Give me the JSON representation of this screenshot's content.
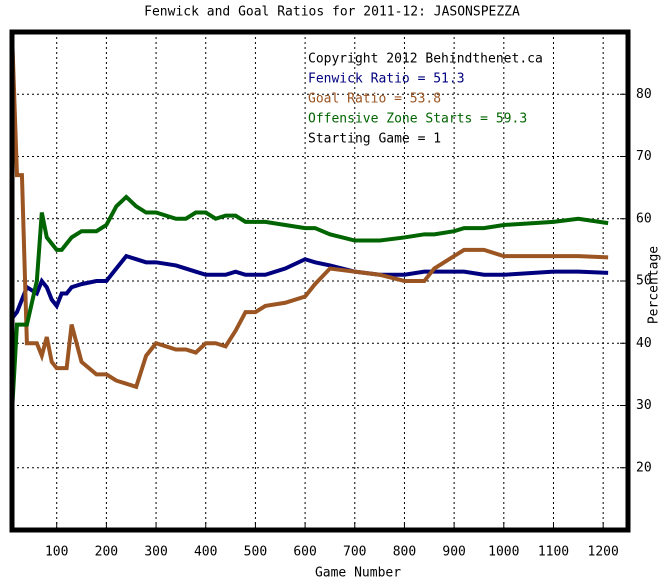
{
  "chart_data": {
    "type": "line",
    "title": "Fenwick and Goal Ratios for 2011-12: JASONSPEZZA",
    "x_label": "Game Number",
    "y_label": "Percentage",
    "annotations": [
      "Copyright 2012 Behindthenet.ca",
      "Starting Game = 1"
    ],
    "x": [
      10,
      20,
      30,
      40,
      60,
      70,
      80,
      90,
      100,
      110,
      120,
      130,
      150,
      180,
      200,
      220,
      240,
      260,
      280,
      300,
      340,
      360,
      380,
      400,
      420,
      440,
      460,
      480,
      500,
      520,
      560,
      600,
      620,
      650,
      700,
      750,
      800,
      840,
      860,
      900,
      920,
      960,
      1000,
      1100,
      1150,
      1210
    ],
    "series": [
      {
        "name": "Fenwick Ratio = 51.3",
        "color": "#00007f",
        "values": [
          44,
          45,
          47,
          49,
          48,
          50,
          49,
          47,
          46,
          48,
          48,
          49,
          49.5,
          50,
          50,
          52,
          54,
          53.5,
          53,
          53,
          52.5,
          52,
          51.5,
          51,
          51,
          51,
          51.5,
          51,
          51,
          51,
          52,
          53.5,
          53,
          52.5,
          51.5,
          51,
          51,
          51.5,
          51.5,
          51.5,
          51.5,
          51,
          51,
          51.5,
          51.5,
          51.3
        ]
      },
      {
        "name": "Goal Ratio = 53.8",
        "color": "#9b5523",
        "values": [
          90,
          67,
          67,
          40,
          40,
          38,
          41,
          37,
          36,
          36,
          36,
          43,
          37,
          35,
          35,
          34,
          33.5,
          33,
          38,
          40,
          39,
          39,
          38.5,
          40,
          40,
          39.5,
          42,
          45,
          45,
          46,
          46.5,
          47.5,
          49.5,
          52,
          51.5,
          51,
          50,
          50,
          52,
          54,
          55,
          55,
          54,
          54,
          54,
          53.8
        ]
      },
      {
        "name": "Offensive Zone Starts = 59.3",
        "color": "#006400",
        "values": [
          29,
          43,
          43,
          43,
          50,
          61,
          57,
          56,
          55,
          55,
          56,
          57,
          58,
          58,
          59,
          62,
          63.5,
          62,
          61,
          61,
          60,
          60,
          61,
          61,
          60,
          60.5,
          60.5,
          59.5,
          59.5,
          59.5,
          59,
          58.5,
          58.5,
          57.5,
          56.5,
          56.5,
          57,
          57.5,
          57.5,
          58,
          58.5,
          58.5,
          59,
          59.5,
          60,
          59.3
        ]
      }
    ],
    "xlim": [
      10,
      1250
    ],
    "ylim": [
      10,
      90
    ],
    "xticks": [
      100,
      200,
      300,
      400,
      500,
      600,
      700,
      800,
      900,
      1000,
      1100,
      1200
    ],
    "yticks": [
      20,
      30,
      40,
      50,
      60,
      70,
      80
    ],
    "grid": true
  }
}
